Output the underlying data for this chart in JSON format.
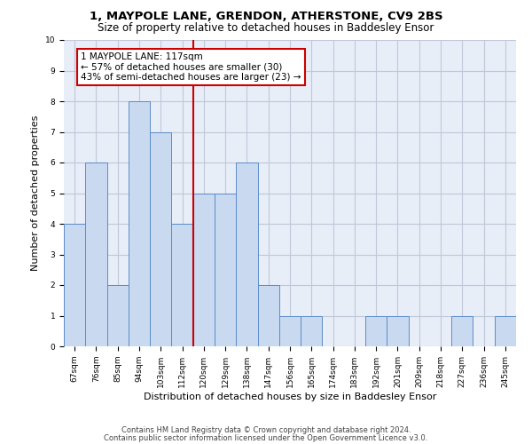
{
  "title": "1, MAYPOLE LANE, GRENDON, ATHERSTONE, CV9 2BS",
  "subtitle": "Size of property relative to detached houses in Baddesley Ensor",
  "xlabel": "Distribution of detached houses by size in Baddesley Ensor",
  "ylabel": "Number of detached properties",
  "categories": [
    "67sqm",
    "76sqm",
    "85sqm",
    "94sqm",
    "103sqm",
    "112sqm",
    "120sqm",
    "129sqm",
    "138sqm",
    "147sqm",
    "156sqm",
    "165sqm",
    "174sqm",
    "183sqm",
    "192sqm",
    "201sqm",
    "209sqm",
    "218sqm",
    "227sqm",
    "236sqm",
    "245sqm"
  ],
  "values": [
    4,
    6,
    2,
    8,
    7,
    4,
    5,
    5,
    6,
    2,
    1,
    1,
    0,
    0,
    1,
    1,
    0,
    0,
    1,
    0,
    1
  ],
  "bar_color": "#c9d9f0",
  "bar_edge_color": "#5b8cc8",
  "grid_color": "#c0c8d8",
  "background_color": "#e8eef8",
  "vline_x": 5.5,
  "vline_color": "#cc0000",
  "annotation_text": "1 MAYPOLE LANE: 117sqm\n← 57% of detached houses are smaller (30)\n43% of semi-detached houses are larger (23) →",
  "annotation_box_color": "#cc0000",
  "footer1": "Contains HM Land Registry data © Crown copyright and database right 2024.",
  "footer2": "Contains public sector information licensed under the Open Government Licence v3.0.",
  "ylim": [
    0,
    10
  ],
  "title_fontsize": 9.5,
  "subtitle_fontsize": 8.5,
  "axis_label_fontsize": 8,
  "tick_fontsize": 6.5,
  "annotation_fontsize": 7.5,
  "footer_fontsize": 6.0
}
